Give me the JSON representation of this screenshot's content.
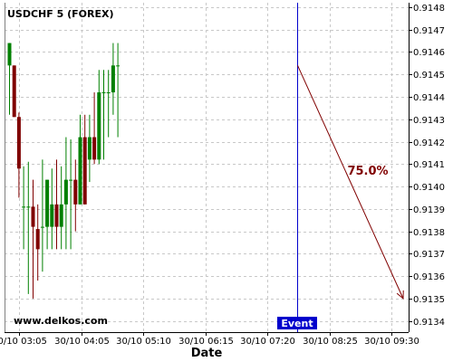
{
  "chart_data": {
    "type": "candlestick",
    "title": "USDCHF 5 (FOREX)",
    "watermark": "www.delkos.com",
    "xlabel": "Date",
    "ylabel": "",
    "ylim": [
      0.91335,
      0.91482
    ],
    "y_ticks": [
      0.9134,
      0.9135,
      0.9136,
      0.9137,
      0.9138,
      0.9139,
      0.914,
      0.9141,
      0.9142,
      0.9143,
      0.9144,
      0.9145,
      0.9146,
      0.9147,
      0.9148
    ],
    "y_tick_labels": [
      "0.9134",
      "0.9135",
      "0.9136",
      "0.9137",
      "0.9138",
      "0.9139",
      "0.9140",
      "0.9141",
      "0.9142",
      "0.9143",
      "0.9144",
      "0.9145",
      "0.9146",
      "0.9147",
      "0.9148"
    ],
    "x_tick_labels": [
      "30/10 03:05",
      "30/10 04:05",
      "30/10 05:10",
      "30/10 06:15",
      "30/10 07:20",
      "30/10 08:25",
      "30/10 09:30"
    ],
    "grid": true,
    "bull_color": "#008000",
    "bear_color": "#800000",
    "candles": [
      {
        "open": 0.91454,
        "high": 0.91464,
        "low": 0.91432,
        "close": 0.91464
      },
      {
        "open": 0.91454,
        "high": 0.91454,
        "low": 0.91431,
        "close": 0.91431
      },
      {
        "open": 0.91431,
        "high": 0.91433,
        "low": 0.91395,
        "close": 0.91408
      },
      {
        "open": 0.91391,
        "high": 0.91409,
        "low": 0.91372,
        "close": 0.91391
      },
      {
        "open": 0.91391,
        "high": 0.91411,
        "low": 0.91352,
        "close": 0.91391
      },
      {
        "open": 0.91391,
        "high": 0.91403,
        "low": 0.9135,
        "close": 0.91382
      },
      {
        "open": 0.91381,
        "high": 0.91392,
        "low": 0.91358,
        "close": 0.91372
      },
      {
        "open": 0.91382,
        "high": 0.91412,
        "low": 0.91362,
        "close": 0.91382
      },
      {
        "open": 0.91382,
        "high": 0.91403,
        "low": 0.91372,
        "close": 0.91403
      },
      {
        "open": 0.91382,
        "high": 0.91408,
        "low": 0.91372,
        "close": 0.91392
      },
      {
        "open": 0.91392,
        "high": 0.91412,
        "low": 0.91372,
        "close": 0.91382
      },
      {
        "open": 0.91382,
        "high": 0.91409,
        "low": 0.91372,
        "close": 0.91392
      },
      {
        "open": 0.91392,
        "high": 0.91422,
        "low": 0.91372,
        "close": 0.91403
      },
      {
        "open": 0.91403,
        "high": 0.91421,
        "low": 0.91372,
        "close": 0.91403
      },
      {
        "open": 0.91403,
        "high": 0.91412,
        "low": 0.9138,
        "close": 0.91392
      },
      {
        "open": 0.91392,
        "high": 0.91432,
        "low": 0.91392,
        "close": 0.91422
      },
      {
        "open": 0.91422,
        "high": 0.91432,
        "low": 0.91392,
        "close": 0.91392
      },
      {
        "open": 0.91412,
        "high": 0.91432,
        "low": 0.91402,
        "close": 0.91422
      },
      {
        "open": 0.91422,
        "high": 0.91442,
        "low": 0.9141,
        "close": 0.91412
      },
      {
        "open": 0.91412,
        "high": 0.91452,
        "low": 0.9141,
        "close": 0.91442
      },
      {
        "open": 0.91442,
        "high": 0.91452,
        "low": 0.91412,
        "close": 0.91442
      },
      {
        "open": 0.91442,
        "high": 0.91452,
        "low": 0.91422,
        "close": 0.91442
      },
      {
        "open": 0.91442,
        "high": 0.91464,
        "low": 0.91432,
        "close": 0.91454
      },
      {
        "open": 0.91454,
        "high": 0.91464,
        "low": 0.91422,
        "close": 0.91454
      }
    ],
    "event_label": "Event",
    "event_color": "#0000cc",
    "projection": {
      "label": "75.0%",
      "from_value": 0.91454,
      "to_value": 0.9135,
      "color": "#800000"
    }
  }
}
